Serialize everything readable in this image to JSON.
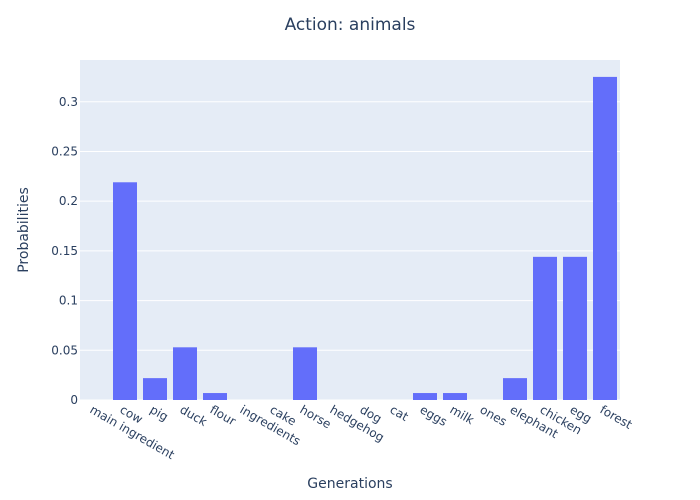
{
  "chart_data": {
    "type": "bar",
    "title": "Action: animals",
    "xlabel": "Generations",
    "ylabel": "Probabilities",
    "categories": [
      "main ingredient",
      "cow",
      "pig",
      "duck",
      "flour",
      "ingredients",
      "cake",
      "horse",
      "hedgehog",
      "dog",
      "cat",
      "eggs",
      "milk",
      "ones",
      "elephant",
      "chicken",
      "egg",
      "forest"
    ],
    "values": [
      0,
      0.219,
      0.022,
      0.053,
      0.007,
      0,
      0,
      0.053,
      0,
      0,
      0,
      0.007,
      0.007,
      0,
      0.022,
      0.144,
      0.144,
      0.325
    ],
    "ylim": [
      0,
      0.342
    ],
    "yticks": [
      0,
      0.05,
      0.1,
      0.15,
      0.2,
      0.25,
      0.3
    ],
    "ytick_labels": [
      "0",
      "0.05",
      "0.1",
      "0.15",
      "0.2",
      "0.25",
      "0.3"
    ],
    "grid": true,
    "colors": {
      "bar": "#636efa",
      "plot_bg": "#e5ecf6",
      "grid": "#ffffff",
      "text": "#2a3f5f"
    }
  }
}
